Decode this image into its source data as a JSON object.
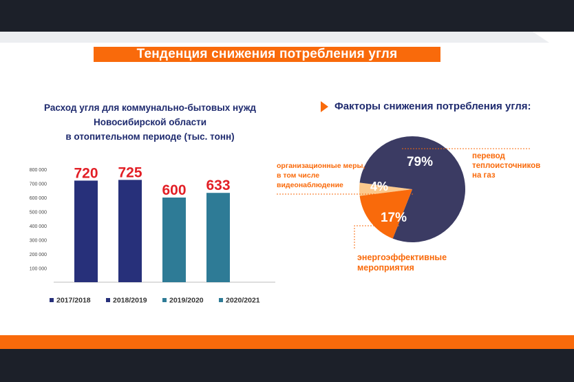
{
  "header": {
    "title": "Тенденция снижения потребления угля"
  },
  "left_chart": {
    "title_lines": [
      "Расход угля для коммунально-бытовых нужд",
      "Новосибирской области",
      "в отопительном периоде (тыс. тонн)"
    ]
  },
  "right_chart": {
    "title": "Факторы снижения потребления угля:",
    "callouts": {
      "org": [
        "организационные меры,",
        "в том числе",
        "видеонаблюдение"
      ],
      "gas": [
        "перевод",
        "теплоисточников",
        "на газ"
      ],
      "eff": [
        "энергоэффективные",
        "мероприятия"
      ]
    }
  },
  "colors": {
    "accent": "#f96a0b",
    "navy": "#27307a",
    "teal": "#2e7b96",
    "pie_main": "#3b3b63",
    "pie_light": "#fcc98d",
    "data_label": "#e21f26",
    "dark_band": "#1c2029"
  },
  "chart_data": [
    {
      "type": "bar",
      "title": "Расход угля для коммунально-бытовых нужд Новосибирской области в отопительном периоде (тыс. тонн)",
      "categories": [
        "2017/2018",
        "2018/2019",
        "2019/2020",
        "2020/2021"
      ],
      "values": [
        720,
        725,
        600,
        633
      ],
      "data_labels": [
        "720",
        "725",
        "600",
        "633"
      ],
      "bar_colors": [
        "#27307a",
        "#27307a",
        "#2e7b96",
        "#2e7b96"
      ],
      "ylim": [
        0,
        800000
      ],
      "yscale_factor": 1000,
      "yticks": [
        100000,
        200000,
        300000,
        400000,
        500000,
        600000,
        700000,
        800000
      ],
      "ytick_labels": [
        "100 000",
        "200 000",
        "300 000",
        "400 000",
        "500 000",
        "600 000",
        "700 000",
        "800 000"
      ],
      "legend": {
        "position": "bottom",
        "entries": [
          "2017/2018",
          "2018/2019",
          "2019/2020",
          "2020/2021"
        ]
      },
      "grid": false
    },
    {
      "type": "pie",
      "title": "Факторы снижения потребления угля:",
      "slices": [
        {
          "label": "перевод теплоисточников на газ",
          "value": 79,
          "value_label": "79%",
          "color": "#3b3b63"
        },
        {
          "label": "энергоэффективные мероприятия",
          "value": 17,
          "value_label": "17%",
          "color": "#f96a0b"
        },
        {
          "label": "организационные меры, в том числе видеонаблюдение",
          "value": 4,
          "value_label": "4%",
          "color": "#fcc98d"
        }
      ]
    }
  ]
}
